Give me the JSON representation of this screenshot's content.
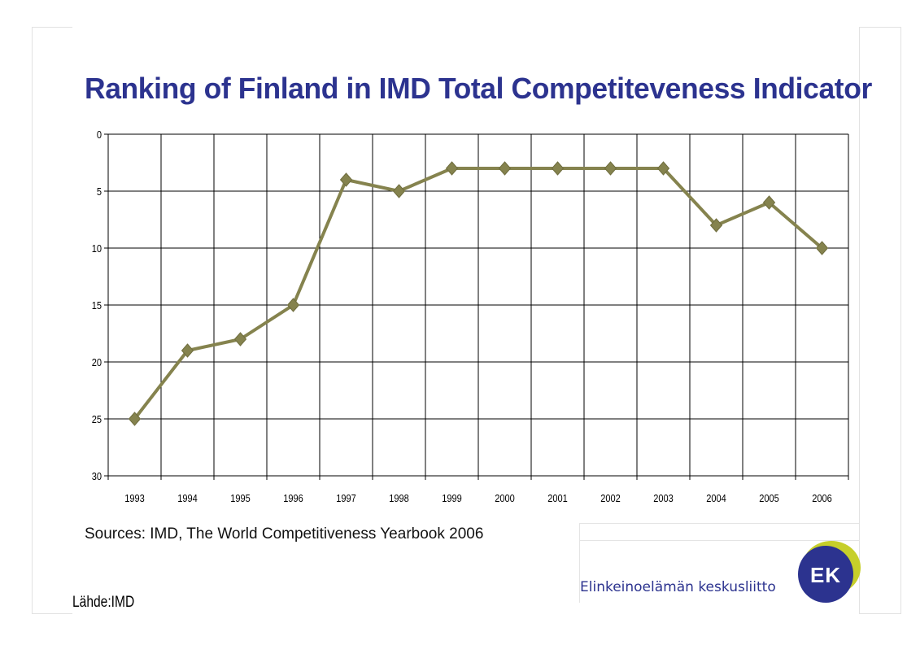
{
  "title": "Ranking of Finland in IMD Total Competiteveness Indicator",
  "source": "Sources: IMD, The World Competitiveness Yearbook 2006",
  "footer_note": "Lähde:IMD",
  "logo": {
    "name": "Elinkeinoelämän keskusliitto",
    "mark_text": "EK"
  },
  "colors": {
    "title": "#2c338f",
    "series": "#85834e",
    "logo_navy": "#2c338f",
    "logo_lime": "#c6cf2a"
  },
  "chart_data": {
    "type": "line",
    "title": "Ranking of Finland in IMD Total Competiteveness Indicator",
    "xlabel": "",
    "ylabel": "",
    "categories": [
      "1993",
      "1994",
      "1995",
      "1996",
      "1997",
      "1998",
      "1999",
      "2000",
      "2001",
      "2002",
      "2003",
      "2004",
      "2005",
      "2006"
    ],
    "series": [
      {
        "values": [
          25,
          19,
          18,
          15,
          4,
          5,
          3,
          3,
          3,
          3,
          3,
          8,
          6,
          10
        ]
      }
    ],
    "y_ticks": [
      0,
      5,
      10,
      15,
      20,
      25,
      30
    ],
    "ylim": [
      0,
      30
    ],
    "y_reversed": true,
    "marker": "diamond",
    "grid": true,
    "legend": "none"
  }
}
